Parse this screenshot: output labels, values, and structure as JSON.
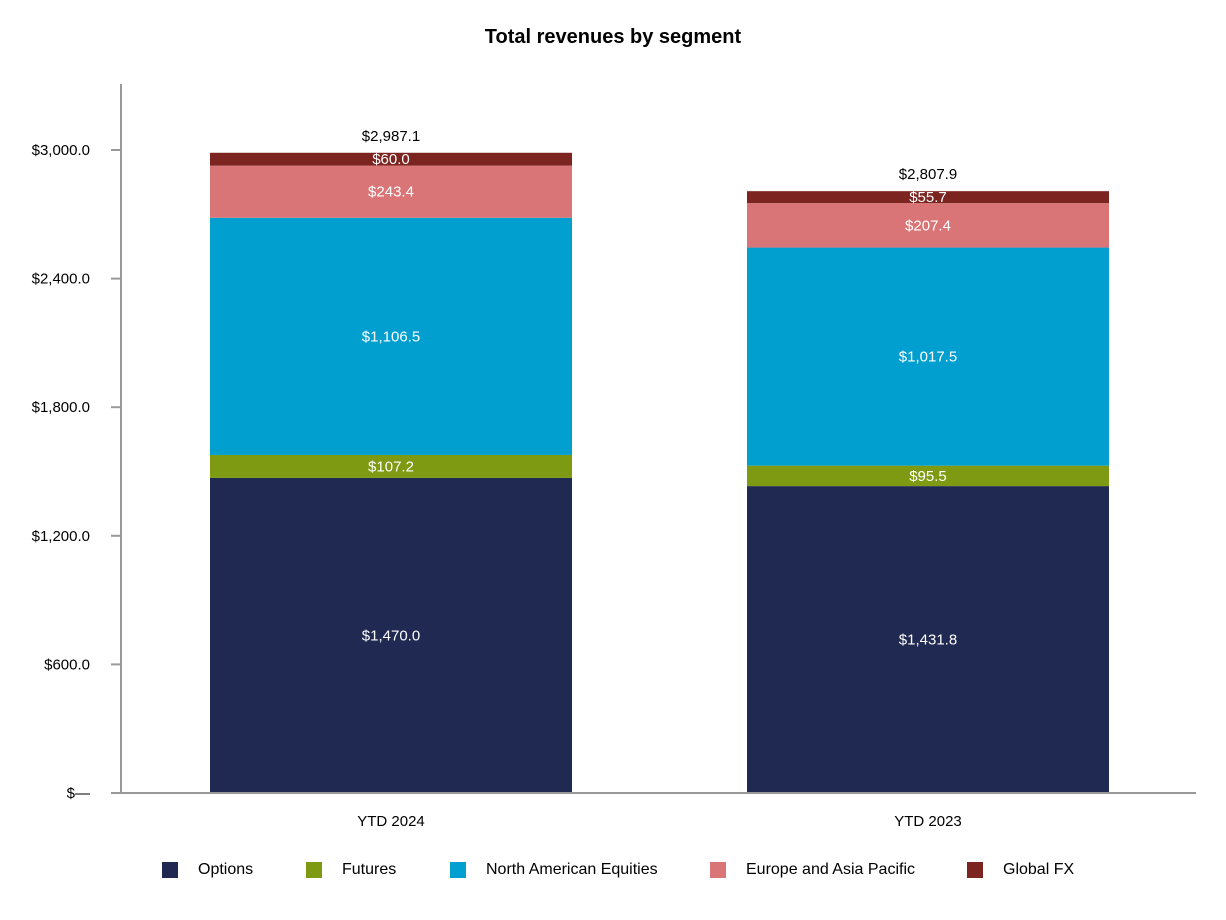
{
  "chart_data": {
    "type": "bar",
    "stacked": true,
    "title": "Total revenues by segment",
    "categories": [
      "YTD 2024",
      "YTD 2023"
    ],
    "series": [
      {
        "name": "Options",
        "values": [
          1470.0,
          1431.8
        ],
        "labels": [
          "$1,470.0",
          "$1,431.8"
        ],
        "color": "#1f2952"
      },
      {
        "name": "Futures",
        "values": [
          107.2,
          95.5
        ],
        "labels": [
          "$107.2",
          "$95.5"
        ],
        "color": "#7e9a13"
      },
      {
        "name": "North American Equities",
        "values": [
          1106.5,
          1017.5
        ],
        "labels": [
          "$1,106.5",
          "$1,017.5"
        ],
        "color": "#009fcf"
      },
      {
        "name": "Europe and Asia Pacific",
        "values": [
          243.4,
          207.4
        ],
        "labels": [
          "$243.4",
          "$207.4"
        ],
        "color": "#d97577"
      },
      {
        "name": "Global FX",
        "values": [
          60.0,
          55.7
        ],
        "labels": [
          "$60.0",
          "$55.7"
        ],
        "color": "#7b2420"
      }
    ],
    "totals": [
      2987.1,
      2807.9
    ],
    "total_labels": [
      "$2,987.1",
      "$2,807.9"
    ],
    "yticks": [
      0,
      600,
      1200,
      1800,
      2400,
      3000
    ],
    "ytick_labels": [
      "$—",
      "$600.0",
      "$1,200.0",
      "$1,800.0",
      "$2,400.0",
      "$3,000.0"
    ],
    "ylim": [
      0,
      3300
    ],
    "legend_position": "bottom",
    "grid": false
  }
}
